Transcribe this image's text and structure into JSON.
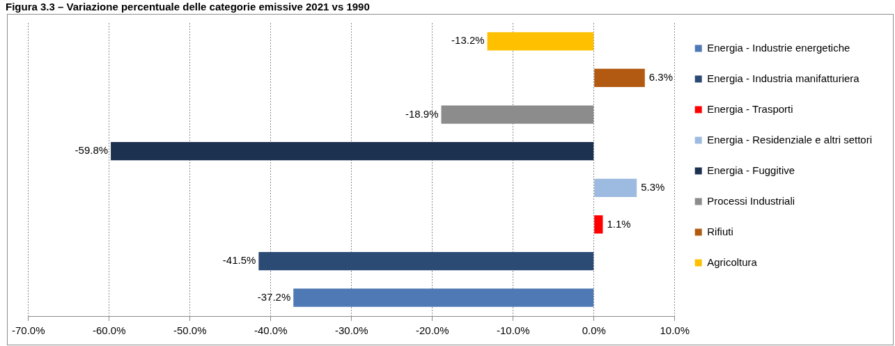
{
  "chart_data": {
    "type": "bar",
    "title": "Figura 3.3 – Variazione percentuale delle categorie emissive 2021 vs 1990",
    "orientation": "horizontal",
    "categories": [
      null,
      null,
      null,
      null,
      null,
      null,
      null,
      null
    ],
    "series": [
      {
        "name": "Energia - Industrie energetiche",
        "color": "#4f79b5",
        "values": [
          null,
          null,
          null,
          null,
          null,
          null,
          null,
          -37.2
        ],
        "value_labels": [
          null,
          null,
          null,
          null,
          null,
          null,
          null,
          "-37.2%"
        ]
      },
      {
        "name": "Energia - Industria manifatturiera",
        "color": "#2b4a74",
        "values": [
          null,
          null,
          null,
          null,
          null,
          null,
          -41.5,
          null
        ],
        "value_labels": [
          null,
          null,
          null,
          null,
          null,
          null,
          "-41.5%",
          null
        ]
      },
      {
        "name": "Energia - Trasporti",
        "color": "#ff0000",
        "values": [
          null,
          null,
          null,
          null,
          null,
          1.1,
          null,
          null
        ],
        "value_labels": [
          null,
          null,
          null,
          null,
          null,
          "1.1%",
          null,
          null
        ]
      },
      {
        "name": "Energia - Residenziale e altri settori",
        "color": "#9dbbe0",
        "values": [
          null,
          null,
          null,
          null,
          5.3,
          null,
          null,
          null
        ],
        "value_labels": [
          null,
          null,
          null,
          null,
          "5.3%",
          null,
          null,
          null
        ]
      },
      {
        "name": "Energia - Fuggitive",
        "color": "#1c3050",
        "values": [
          null,
          null,
          null,
          -59.8,
          null,
          null,
          null,
          null
        ],
        "value_labels": [
          null,
          null,
          null,
          "-59.8%",
          null,
          null,
          null,
          null
        ]
      },
      {
        "name": "Processi Industriali",
        "color": "#8c8c8c",
        "values": [
          null,
          null,
          -18.9,
          null,
          null,
          null,
          null,
          null
        ],
        "value_labels": [
          null,
          null,
          "-18.9%",
          null,
          null,
          null,
          null,
          null
        ]
      },
      {
        "name": "Rifiuti",
        "color": "#b35a12",
        "values": [
          null,
          6.3,
          null,
          null,
          null,
          null,
          null,
          null
        ],
        "value_labels": [
          null,
          "6.3%",
          null,
          null,
          null,
          null,
          null,
          null
        ]
      },
      {
        "name": "Agricoltura",
        "color": "#ffc000",
        "values": [
          -13.2,
          null,
          null,
          null,
          null,
          null,
          null,
          null
        ],
        "value_labels": [
          "-13.2%",
          null,
          null,
          null,
          null,
          null,
          null,
          null
        ]
      }
    ],
    "xlim": [
      -70,
      10
    ],
    "xticks": [
      {
        "value": -70,
        "label": "-70.0%"
      },
      {
        "value": -60,
        "label": "-60.0%"
      },
      {
        "value": -50,
        "label": "-50.0%"
      },
      {
        "value": -40,
        "label": "-40.0%"
      },
      {
        "value": -30,
        "label": "-30.0%"
      },
      {
        "value": -20,
        "label": "-20.0%"
      },
      {
        "value": -10,
        "label": "-10.0%"
      },
      {
        "value": 0,
        "label": "0.0%"
      },
      {
        "value": 10,
        "label": "10.0%"
      }
    ],
    "grid": "x",
    "legend": "right",
    "tick_labels": "x"
  }
}
